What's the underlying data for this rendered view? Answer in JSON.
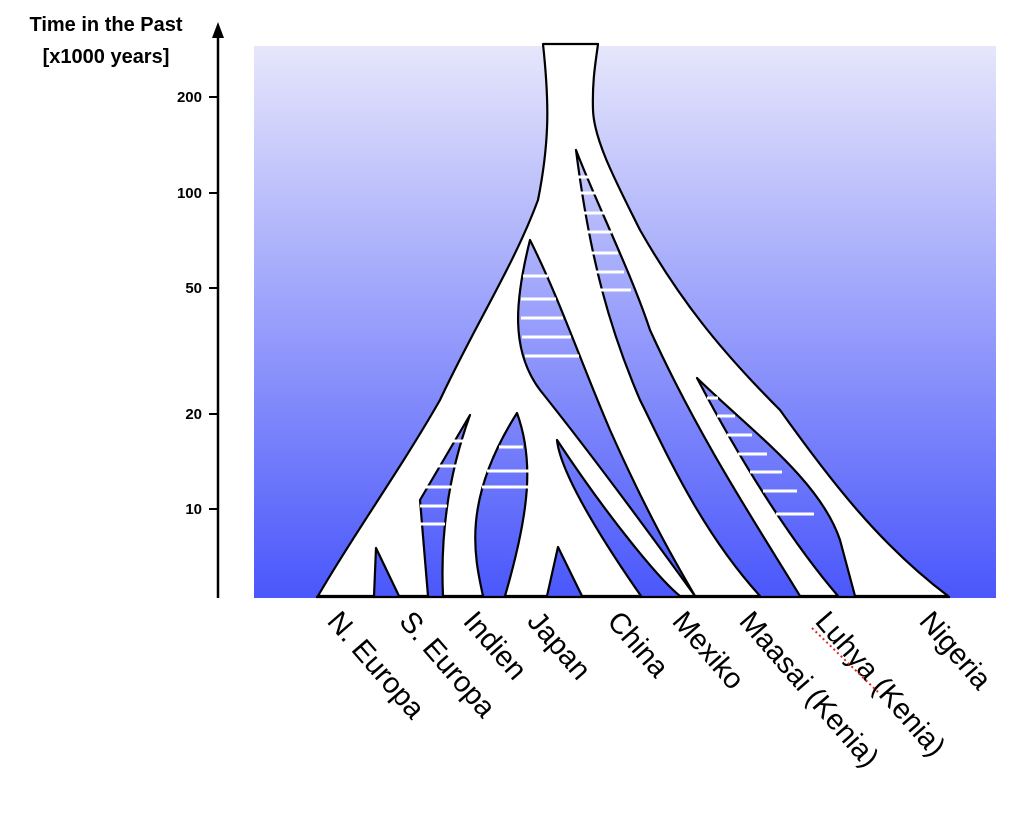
{
  "axis": {
    "title_line1": "Time in the Past",
    "title_line2": "[x1000 years]",
    "ticks": [
      "200",
      "100",
      "50",
      "20",
      "10"
    ]
  },
  "populations": [
    "N. Europa",
    "S. Europa",
    "Indien",
    "Japan",
    "China",
    "Mexiko",
    "Maasai (Kenia)",
    "Luhya (Kenia)",
    "Nigeria"
  ],
  "colors": {
    "background_top": "#e6e6fb",
    "background_bottom": "#4a57fb",
    "tree_fill": "#ffffff",
    "outline": "#000000",
    "spellcheck_underline": "#e0241e"
  }
}
